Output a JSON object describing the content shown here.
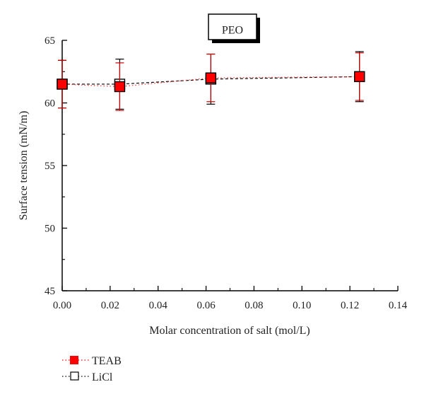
{
  "chart_data": {
    "type": "scatter",
    "title": "PEO",
    "xlabel": "Molar concentration of salt (mol/L)",
    "ylabel": "Surface tension (mN/m)",
    "xlim": [
      0.0,
      0.14
    ],
    "ylim": [
      45,
      65
    ],
    "xticks": [
      "0.00",
      "0.02",
      "0.04",
      "0.06",
      "0.08",
      "0.10",
      "0.12",
      "0.14"
    ],
    "yticks": [
      "45",
      "50",
      "55",
      "60",
      "65"
    ],
    "grid": false,
    "legend_position": "bottom-left, below plot",
    "series": [
      {
        "name": "TEAB",
        "marker": "filled-square",
        "line_style": "dotted",
        "color": "#ff0000",
        "x": [
          0.0,
          0.024,
          0.062,
          0.124
        ],
        "y": [
          61.5,
          61.3,
          62.0,
          62.1
        ],
        "error": [
          1.9,
          1.9,
          1.9,
          1.9
        ]
      },
      {
        "name": "LiCl",
        "marker": "open-square",
        "line_style": "dotted",
        "color": "#000000",
        "x": [
          0.0,
          0.024,
          0.062,
          0.124
        ],
        "y": [
          61.5,
          61.5,
          61.9,
          62.1
        ],
        "error": [
          1.9,
          2.0,
          2.0,
          2.0
        ]
      }
    ]
  }
}
